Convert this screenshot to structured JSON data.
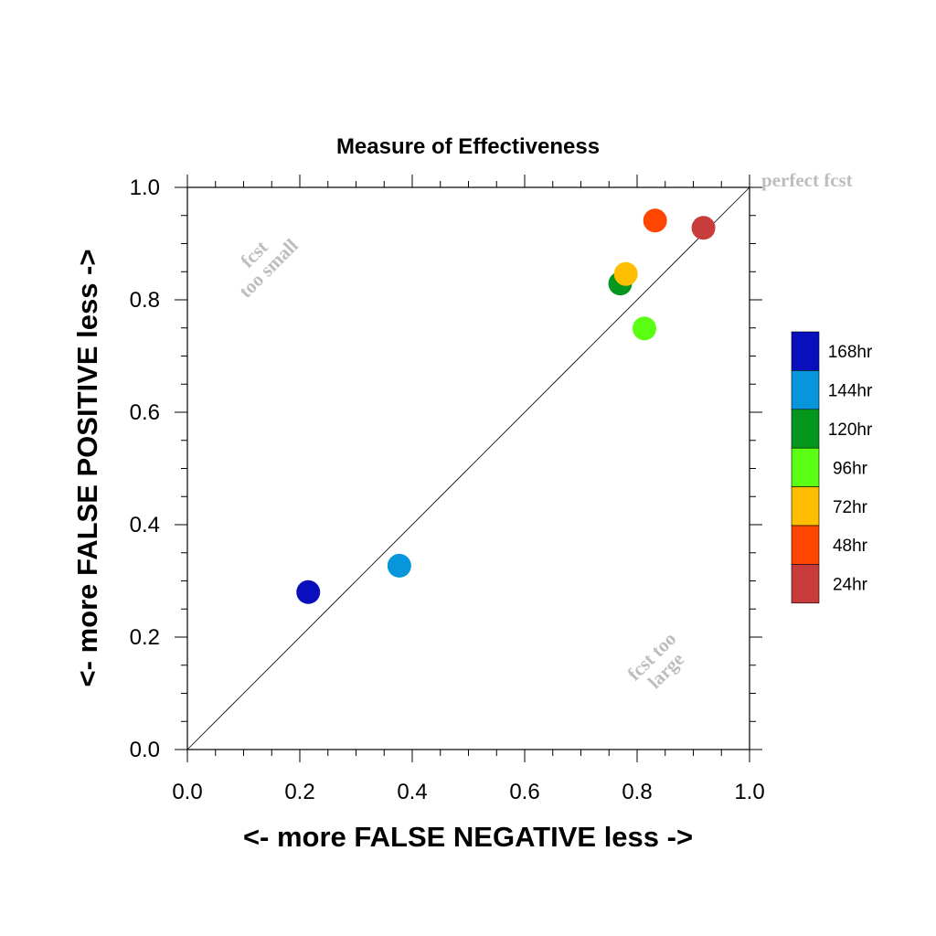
{
  "chart_data": {
    "type": "scatter",
    "title": "Measure of Effectiveness",
    "xlabel": "<- more   FALSE NEGATIVE   less ->",
    "ylabel": "<- more   FALSE POSITIVE   less ->",
    "xlim": [
      0,
      1
    ],
    "ylim": [
      0,
      1
    ],
    "x_ticks": [
      "0.0",
      "0.2",
      "0.4",
      "0.6",
      "0.8",
      "1.0"
    ],
    "y_ticks": [
      "0.0",
      "0.2",
      "0.4",
      "0.6",
      "0.8",
      "1.0"
    ],
    "grid": false,
    "legend_placement": "right",
    "reference_line": "diagonal y = x",
    "annotations": {
      "perfect": "perfect fcst",
      "too_small_line1": "fcst",
      "too_small_line2": "too small",
      "too_large_line1": "fcst too",
      "too_large_line2": "large"
    },
    "series": [
      {
        "name": "168hr",
        "color": "#0a0fbe",
        "x": 0.215,
        "y": 0.28
      },
      {
        "name": "144hr",
        "color": "#0796dc",
        "x": 0.377,
        "y": 0.327
      },
      {
        "name": "120hr",
        "color": "#05961e",
        "x": 0.77,
        "y": 0.829
      },
      {
        "name": "96hr",
        "color": "#5aff14",
        "x": 0.813,
        "y": 0.749
      },
      {
        "name": "72hr",
        "color": "#ffbe00",
        "x": 0.78,
        "y": 0.846
      },
      {
        "name": "48hr",
        "color": "#ff4600",
        "x": 0.832,
        "y": 0.941
      },
      {
        "name": "24hr",
        "color": "#c83c3c",
        "x": 0.918,
        "y": 0.928
      }
    ],
    "legend_order": [
      "168hr",
      "144hr",
      "120hr",
      "96hr",
      "72hr",
      "48hr",
      "24hr"
    ]
  }
}
